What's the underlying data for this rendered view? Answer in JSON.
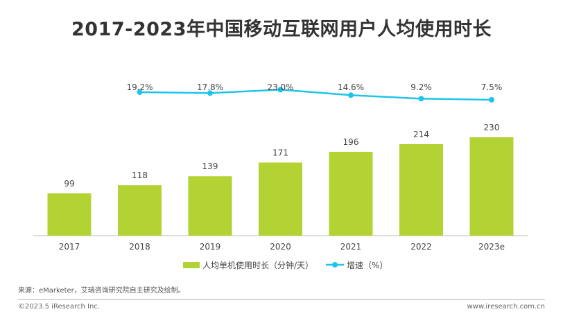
{
  "chart_data": {
    "type": "bar",
    "title": "2017-2023年中国移动互联网用户人均使用时长",
    "categories": [
      "2017",
      "2018",
      "2019",
      "2020",
      "2021",
      "2022",
      "2023e"
    ],
    "series": [
      {
        "name": "人均单机使用时长（分钟/天）",
        "type": "bar",
        "values": [
          99,
          118,
          139,
          171,
          196,
          214,
          230
        ],
        "color": "#b3d335"
      },
      {
        "name": "增速（%）",
        "type": "line",
        "values": [
          null,
          19.2,
          17.8,
          23.0,
          14.6,
          9.2,
          7.5
        ],
        "labels": [
          "",
          "19.2%",
          "17.8%",
          "23.0%",
          "14.6%",
          "9.2%",
          "7.5%"
        ],
        "color": "#1fc4ec"
      }
    ],
    "grid": false,
    "legend": "bottom"
  },
  "footer": {
    "source": "来源：eMarketer，艾瑞咨询研究院自主研究及绘制。",
    "copyright": "©2023.5 iResearch Inc.",
    "website": "www.iresearch.com.cn"
  }
}
